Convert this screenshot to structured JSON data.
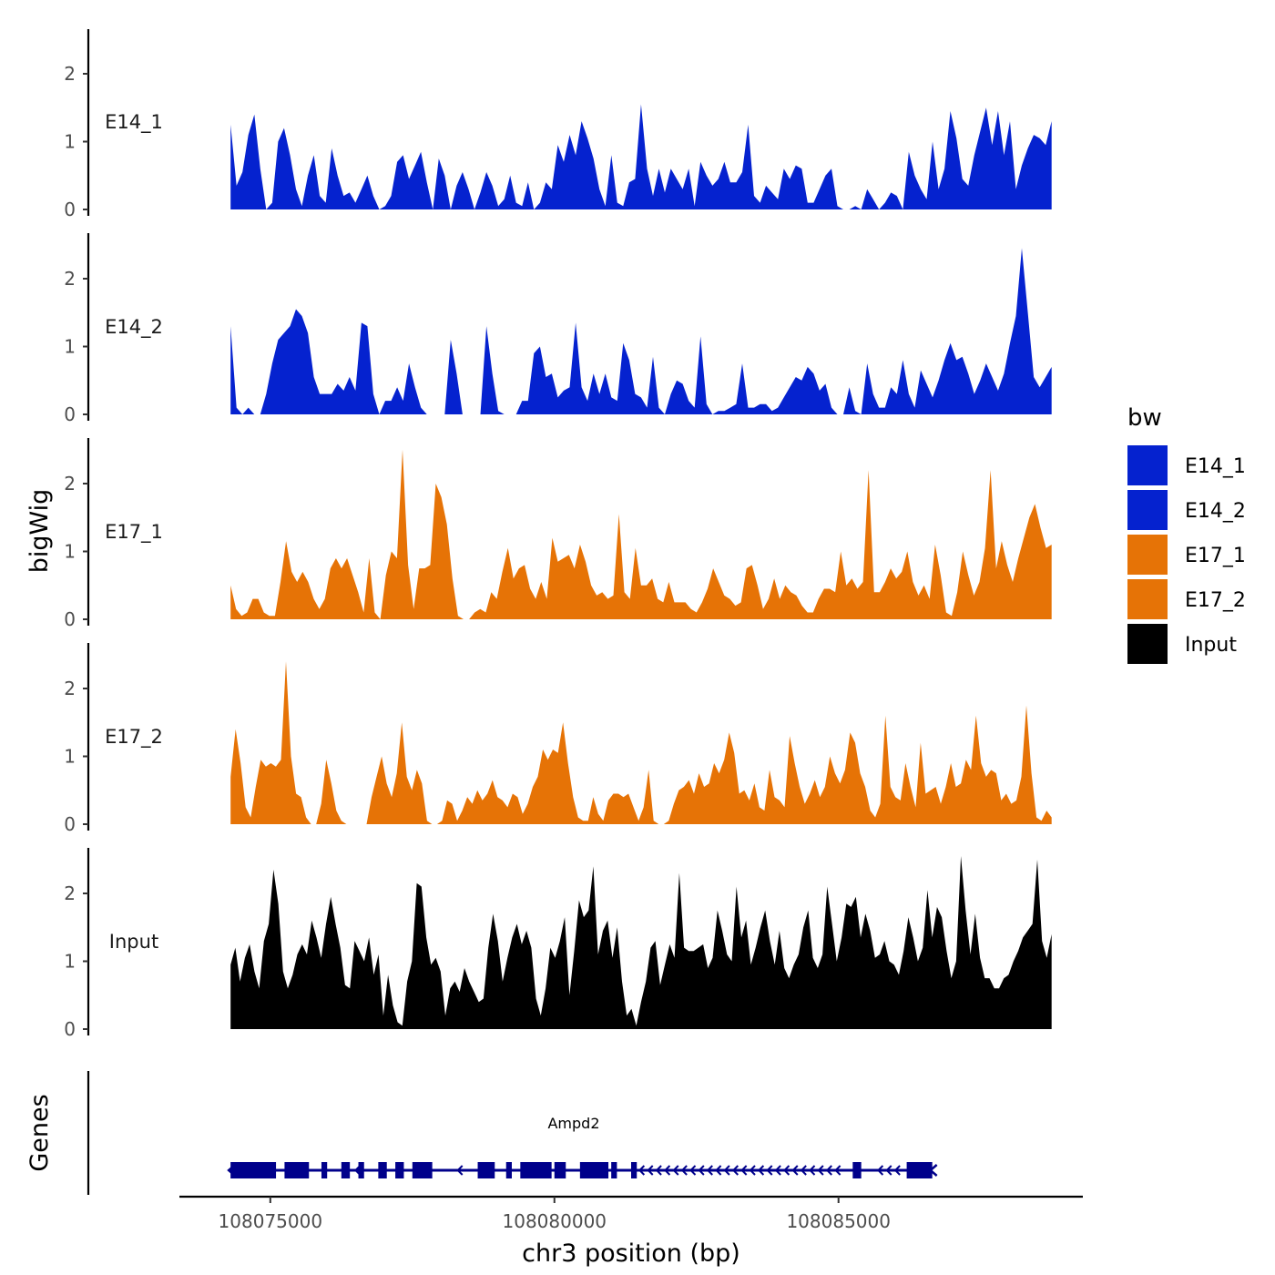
{
  "chart_data": {
    "type": "area",
    "title": "",
    "ylabel": "bigWig",
    "genes_label": "Genes",
    "xlabel": "chr3 position (bp)",
    "xlim": [
      108073400,
      108089300
    ],
    "data_x_range": [
      108074300,
      108088750
    ],
    "ylim": [
      0,
      2.65
    ],
    "yticks": [
      "0",
      "1",
      "2"
    ],
    "xticks": [
      {
        "value": 108075000,
        "label": "108075000"
      },
      {
        "value": 108080000,
        "label": "108080000"
      },
      {
        "value": 108085000,
        "label": "108085000"
      }
    ],
    "legend": {
      "title": "bw",
      "items": [
        {
          "label": "E14_1",
          "color": "#0522cf"
        },
        {
          "label": "E14_2",
          "color": "#0522cf"
        },
        {
          "label": "E17_1",
          "color": "#e67306"
        },
        {
          "label": "E17_2",
          "color": "#e67306"
        },
        {
          "label": "Input",
          "color": "#000000"
        }
      ]
    },
    "series": [
      {
        "name": "E14_1",
        "color": "#0522cf",
        "values": [
          1.25,
          0.35,
          0.55,
          1.1,
          1.4,
          0.6,
          0,
          0.1,
          1.0,
          1.2,
          0.8,
          0.3,
          0.05,
          0.5,
          0.8,
          0.2,
          0.1,
          0.9,
          0.5,
          0.2,
          0.25,
          0.1,
          0.3,
          0.5,
          0.2,
          0,
          0.05,
          0.2,
          0.7,
          0.8,
          0.45,
          0.65,
          0.85,
          0.4,
          0,
          0.75,
          0.5,
          0,
          0.35,
          0.55,
          0.3,
          0,
          0.25,
          0.55,
          0.35,
          0.05,
          0.15,
          0.5,
          0.1,
          0.05,
          0.4,
          0,
          0.1,
          0.4,
          0.3,
          0.95,
          0.7,
          1.1,
          0.8,
          1.3,
          1.05,
          0.75,
          0.3,
          0.05,
          0.8,
          0.1,
          0.05,
          0.4,
          0.45,
          1.55,
          0.6,
          0.2,
          0.6,
          0.25,
          0.6,
          0.45,
          0.3,
          0.6,
          0.05,
          0.7,
          0.5,
          0.35,
          0.45,
          0.7,
          0.4,
          0.4,
          0.55,
          1.25,
          0.2,
          0.1,
          0.35,
          0.25,
          0.15,
          0.6,
          0.45,
          0.65,
          0.6,
          0.1,
          0.1,
          0.3,
          0.5,
          0.6,
          0.05,
          0,
          0,
          0.05,
          0,
          0.3,
          0.15,
          0,
          0.1,
          0.25,
          0.2,
          0,
          0.85,
          0.5,
          0.3,
          0.15,
          1.0,
          0.3,
          0.6,
          1.45,
          1.05,
          0.45,
          0.35,
          0.8,
          1.15,
          1.5,
          0.95,
          1.45,
          0.8,
          1.3,
          0.3,
          0.65,
          0.9,
          1.1,
          1.05,
          0.95,
          1.3
        ]
      },
      {
        "name": "E14_2",
        "color": "#0522cf",
        "values": [
          1.3,
          0.1,
          0,
          0.1,
          0,
          0,
          0.3,
          0.75,
          1.1,
          1.2,
          1.3,
          1.55,
          1.45,
          1.2,
          0.55,
          0.3,
          0.3,
          0.3,
          0.45,
          0.35,
          0.55,
          0.35,
          1.35,
          1.3,
          0.3,
          0,
          0.2,
          0.2,
          0.4,
          0.2,
          0.75,
          0.4,
          0.1,
          0,
          0,
          0,
          0,
          1.1,
          0.6,
          0,
          0,
          0,
          0,
          1.3,
          0.6,
          0.05,
          0,
          0,
          0,
          0.2,
          0.2,
          0.9,
          1.0,
          0.55,
          0.6,
          0.25,
          0.35,
          0.4,
          1.35,
          0.4,
          0.2,
          0.6,
          0.3,
          0.6,
          0.25,
          0.2,
          1.05,
          0.8,
          0.3,
          0.25,
          0.1,
          0.85,
          0.1,
          0,
          0.3,
          0.5,
          0.45,
          0.2,
          0.1,
          1.15,
          0.15,
          0,
          0.05,
          0.05,
          0.1,
          0.15,
          0.75,
          0.1,
          0.1,
          0.15,
          0.15,
          0.05,
          0.1,
          0.25,
          0.4,
          0.55,
          0.5,
          0.7,
          0.6,
          0.35,
          0.45,
          0.1,
          0,
          0,
          0.4,
          0.05,
          0,
          0.75,
          0.3,
          0.1,
          0.1,
          0.4,
          0.3,
          0.8,
          0.3,
          0.1,
          0.65,
          0.45,
          0.25,
          0.5,
          0.8,
          1.05,
          0.8,
          0.85,
          0.6,
          0.3,
          0.5,
          0.75,
          0.55,
          0.35,
          0.6,
          1.05,
          1.45,
          2.45,
          1.5,
          0.55,
          0.4,
          0.55,
          0.7
        ]
      },
      {
        "name": "E17_1",
        "color": "#e67306",
        "values": [
          0.5,
          0.15,
          0.05,
          0.1,
          0.3,
          0.3,
          0.1,
          0.05,
          0.05,
          0.55,
          1.15,
          0.7,
          0.55,
          0.7,
          0.55,
          0.3,
          0.15,
          0.3,
          0.75,
          0.9,
          0.75,
          0.9,
          0.65,
          0.4,
          0.1,
          0.9,
          0.1,
          0,
          0.65,
          1.0,
          0.9,
          2.5,
          0.8,
          0.15,
          0.75,
          0.75,
          0.8,
          2.0,
          1.8,
          1.4,
          0.6,
          0.05,
          0,
          0,
          0.1,
          0.15,
          0.1,
          0.4,
          0.3,
          0.7,
          1.05,
          0.6,
          0.75,
          0.8,
          0.45,
          0.3,
          0.55,
          0.3,
          1.2,
          0.85,
          0.9,
          0.95,
          0.75,
          1.1,
          0.85,
          0.5,
          0.35,
          0.4,
          0.3,
          0.35,
          1.55,
          0.4,
          0.3,
          1.05,
          0.5,
          0.5,
          0.6,
          0.3,
          0.25,
          0.55,
          0.25,
          0.25,
          0.25,
          0.15,
          0.1,
          0.25,
          0.45,
          0.75,
          0.55,
          0.35,
          0.3,
          0.2,
          0.25,
          0.75,
          0.8,
          0.5,
          0.15,
          0.3,
          0.6,
          0.3,
          0.5,
          0.4,
          0.35,
          0.2,
          0.1,
          0.1,
          0.3,
          0.45,
          0.45,
          0.4,
          1.0,
          0.5,
          0.6,
          0.45,
          0.55,
          2.2,
          0.4,
          0.4,
          0.55,
          0.75,
          0.6,
          0.7,
          1.0,
          0.55,
          0.35,
          0.5,
          0.3,
          1.1,
          0.65,
          0.1,
          0.05,
          0.4,
          1.0,
          0.65,
          0.35,
          0.55,
          1.05,
          2.2,
          0.75,
          1.15,
          0.8,
          0.55,
          0.9,
          1.2,
          1.5,
          1.7,
          1.35,
          1.05,
          1.1
        ]
      },
      {
        "name": "E17_2",
        "color": "#e67306",
        "values": [
          0.7,
          1.4,
          0.9,
          0.25,
          0.1,
          0.55,
          0.95,
          0.85,
          0.9,
          0.85,
          0.95,
          2.4,
          1.0,
          0.45,
          0.4,
          0.1,
          0,
          0,
          0.3,
          0.95,
          0.6,
          0.2,
          0.05,
          0,
          0,
          0,
          0,
          0,
          0.4,
          0.7,
          1.0,
          0.6,
          0.4,
          0.75,
          1.5,
          0.7,
          0.5,
          0.8,
          0.6,
          0.05,
          0,
          0,
          0.05,
          0.35,
          0.3,
          0.05,
          0.2,
          0.4,
          0.3,
          0.5,
          0.35,
          0.45,
          0.65,
          0.4,
          0.35,
          0.25,
          0.45,
          0.4,
          0.15,
          0.3,
          0.55,
          0.7,
          1.1,
          0.95,
          1.1,
          1.05,
          1.5,
          0.9,
          0.4,
          0.1,
          0.05,
          0.05,
          0.4,
          0.15,
          0.05,
          0.35,
          0.45,
          0.45,
          0.4,
          0.45,
          0.25,
          0.05,
          0.25,
          0.8,
          0.05,
          0,
          0,
          0.05,
          0.3,
          0.5,
          0.55,
          0.65,
          0.45,
          0.75,
          0.55,
          0.6,
          0.9,
          0.75,
          0.95,
          1.35,
          1.05,
          0.45,
          0.5,
          0.35,
          0.6,
          0.25,
          0.2,
          0.8,
          0.4,
          0.35,
          0.25,
          1.3,
          0.9,
          0.55,
          0.3,
          0.45,
          0.65,
          0.4,
          0.55,
          1.0,
          0.75,
          0.6,
          0.8,
          1.35,
          1.2,
          0.75,
          0.55,
          0.2,
          0.1,
          0.3,
          1.6,
          0.55,
          0.4,
          0.35,
          0.9,
          0.55,
          0.25,
          1.2,
          0.45,
          0.5,
          0.55,
          0.3,
          0.55,
          0.9,
          0.55,
          0.6,
          0.95,
          0.8,
          1.6,
          0.9,
          0.7,
          0.8,
          0.75,
          0.35,
          0.45,
          0.3,
          0.35,
          0.7,
          1.75,
          0.75,
          0.1,
          0.05,
          0.2,
          0.1
        ]
      },
      {
        "name": "Input",
        "color": "#000000",
        "values": [
          0.95,
          1.2,
          0.7,
          1.05,
          1.25,
          0.85,
          0.6,
          1.3,
          1.55,
          2.35,
          1.85,
          0.85,
          0.6,
          0.8,
          1.1,
          1.25,
          1.1,
          1.6,
          1.35,
          1.05,
          1.55,
          1.95,
          1.55,
          1.2,
          0.65,
          0.6,
          1.3,
          1.15,
          1.0,
          1.35,
          0.8,
          1.1,
          0.2,
          0.8,
          0.35,
          0.1,
          0.05,
          0.7,
          1.0,
          2.15,
          2.1,
          1.35,
          0.95,
          1.05,
          0.85,
          0.2,
          0.6,
          0.7,
          0.55,
          0.9,
          0.7,
          0.55,
          0.4,
          0.45,
          1.2,
          1.7,
          1.3,
          0.7,
          1.05,
          1.35,
          1.55,
          1.25,
          1.45,
          1.2,
          0.45,
          0.2,
          0.6,
          1.2,
          1.05,
          1.3,
          1.65,
          0.5,
          1.15,
          1.9,
          1.65,
          1.75,
          2.4,
          1.1,
          1.45,
          1.6,
          1.05,
          1.5,
          0.7,
          0.2,
          0.3,
          0.05,
          0.4,
          0.7,
          1.2,
          1.3,
          0.65,
          0.95,
          1.25,
          1.05,
          2.3,
          1.2,
          1.15,
          1.15,
          1.2,
          1.25,
          0.9,
          1.05,
          1.75,
          1.45,
          1.1,
          1.0,
          2.1,
          1.35,
          1.6,
          0.95,
          1.2,
          1.5,
          1.75,
          1.3,
          0.95,
          1.45,
          0.9,
          0.75,
          0.95,
          1.1,
          1.5,
          1.75,
          1.05,
          0.9,
          1.1,
          2.1,
          1.55,
          1.0,
          1.35,
          1.85,
          1.8,
          1.95,
          1.35,
          1.7,
          1.45,
          1.05,
          1.1,
          1.3,
          1.0,
          0.95,
          0.8,
          1.15,
          1.65,
          1.35,
          1.0,
          1.2,
          2.05,
          1.35,
          1.8,
          1.65,
          1.15,
          0.75,
          1.0,
          2.55,
          1.75,
          1.1,
          1.7,
          1.05,
          0.75,
          0.75,
          0.6,
          0.6,
          0.75,
          0.8,
          1.0,
          1.15,
          1.35,
          1.45,
          1.55,
          2.5,
          1.3,
          1.05,
          1.4
        ]
      }
    ],
    "gene": {
      "name": "Ampd2",
      "color": "#00008b",
      "start": 108074300,
      "end": 108086650,
      "strand": "-",
      "exons": [
        [
          108074300,
          108075100
        ],
        [
          108075250,
          108075680
        ],
        [
          108075900,
          108076000
        ],
        [
          108076250,
          108076400
        ],
        [
          108076550,
          108076650
        ],
        [
          108076900,
          108077050
        ],
        [
          108077200,
          108077350
        ],
        [
          108077500,
          108077850
        ],
        [
          108078650,
          108078950
        ],
        [
          108079150,
          108079250
        ],
        [
          108079400,
          108079950
        ],
        [
          108080000,
          108080200
        ],
        [
          108080450,
          108080950
        ],
        [
          108081000,
          108081100
        ],
        [
          108081350,
          108081450
        ],
        [
          108085250,
          108085400
        ],
        [
          108086200,
          108086650
        ]
      ],
      "arrows": [
        108075900,
        108076500,
        108077600,
        108078300,
        108080050,
        108081500,
        108081650,
        108081800,
        108081950,
        108082100,
        108082250,
        108082400,
        108082550,
        108082700,
        108082850,
        108083000,
        108083150,
        108083300,
        108083450,
        108083600,
        108083750,
        108083900,
        108084050,
        108084200,
        108084350,
        108084500,
        108084650,
        108084800,
        108084950,
        108085700,
        108085850,
        108086000
      ]
    }
  }
}
